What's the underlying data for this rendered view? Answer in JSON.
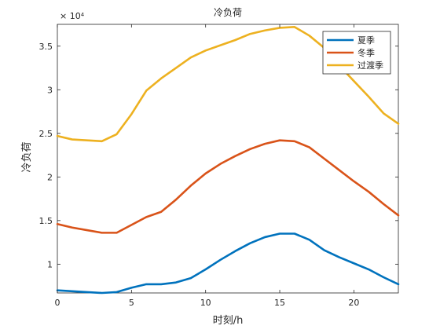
{
  "chart_data": {
    "type": "line",
    "title": "冷负荷",
    "xlabel": "时刻/h",
    "ylabel": "冷负荷",
    "y_exponent_label": "× 10⁴",
    "xlim": [
      0,
      23
    ],
    "ylim": [
      0.67,
      3.75
    ],
    "x_ticks": [
      0,
      5,
      10,
      15,
      20
    ],
    "x_tick_labels": [
      "0",
      "5",
      "10",
      "15",
      "20"
    ],
    "y_ticks": [
      1,
      1.5,
      2,
      2.5,
      3,
      3.5
    ],
    "y_tick_labels": [
      "1",
      "1.5",
      "2",
      "2.5",
      "3",
      "3.5"
    ],
    "grid": false,
    "legend_position": "top-right",
    "x": [
      0,
      1,
      2,
      3,
      4,
      5,
      6,
      7,
      8,
      9,
      10,
      11,
      12,
      13,
      14,
      15,
      16,
      17,
      18,
      19,
      20,
      21,
      22,
      23
    ],
    "series": [
      {
        "name": "夏季",
        "color": "#0072BD",
        "values": [
          0.7,
          0.69,
          0.68,
          0.67,
          0.68,
          0.73,
          0.77,
          0.77,
          0.79,
          0.84,
          0.94,
          1.05,
          1.15,
          1.24,
          1.31,
          1.35,
          1.35,
          1.28,
          1.16,
          1.08,
          1.01,
          0.94,
          0.85,
          0.77
        ]
      },
      {
        "name": "冬季",
        "color": "#D95319",
        "values": [
          1.46,
          1.42,
          1.39,
          1.36,
          1.36,
          1.45,
          1.54,
          1.6,
          1.74,
          1.9,
          2.04,
          2.15,
          2.24,
          2.32,
          2.38,
          2.42,
          2.41,
          2.34,
          2.21,
          2.08,
          1.95,
          1.83,
          1.69,
          1.56
        ]
      },
      {
        "name": "过渡季",
        "color": "#EDB120",
        "values": [
          2.47,
          2.43,
          2.42,
          2.41,
          2.49,
          2.72,
          2.99,
          3.13,
          3.25,
          3.37,
          3.45,
          3.51,
          3.57,
          3.64,
          3.68,
          3.71,
          3.72,
          3.62,
          3.48,
          3.28,
          3.1,
          2.92,
          2.73,
          2.61
        ]
      }
    ]
  }
}
